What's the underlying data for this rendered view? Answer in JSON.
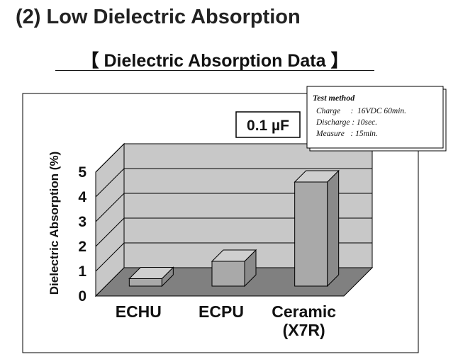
{
  "page": {
    "heading": "(2) Low Dielectric Absorption",
    "subheading": "【 Dielectric Absorption Data 】"
  },
  "chart_data": {
    "type": "bar",
    "categories": [
      [
        "ECHU"
      ],
      [
        "ECPU"
      ],
      [
        "Ceramic",
        "(X7R)"
      ]
    ],
    "values": [
      0.3,
      1.0,
      4.2
    ],
    "ylabel": "Dielectric Absorption (%)",
    "yticks": [
      0,
      1,
      2,
      3,
      4,
      5
    ],
    "ylim": [
      0,
      5
    ],
    "capacitance_label": "0.1 µF",
    "test_method": {
      "title": "Test method",
      "lines": [
        "Charge     :  16VDC 60min.",
        "Discharge : 10sec.",
        "Measure   : 15min."
      ]
    },
    "grid": true,
    "colors": {
      "wall": "#c8c8c8",
      "floor": "#808080",
      "bar_front": "#a9a9a9",
      "bar_top": "#cfcfcf",
      "bar_side": "#8a8a8a"
    }
  }
}
